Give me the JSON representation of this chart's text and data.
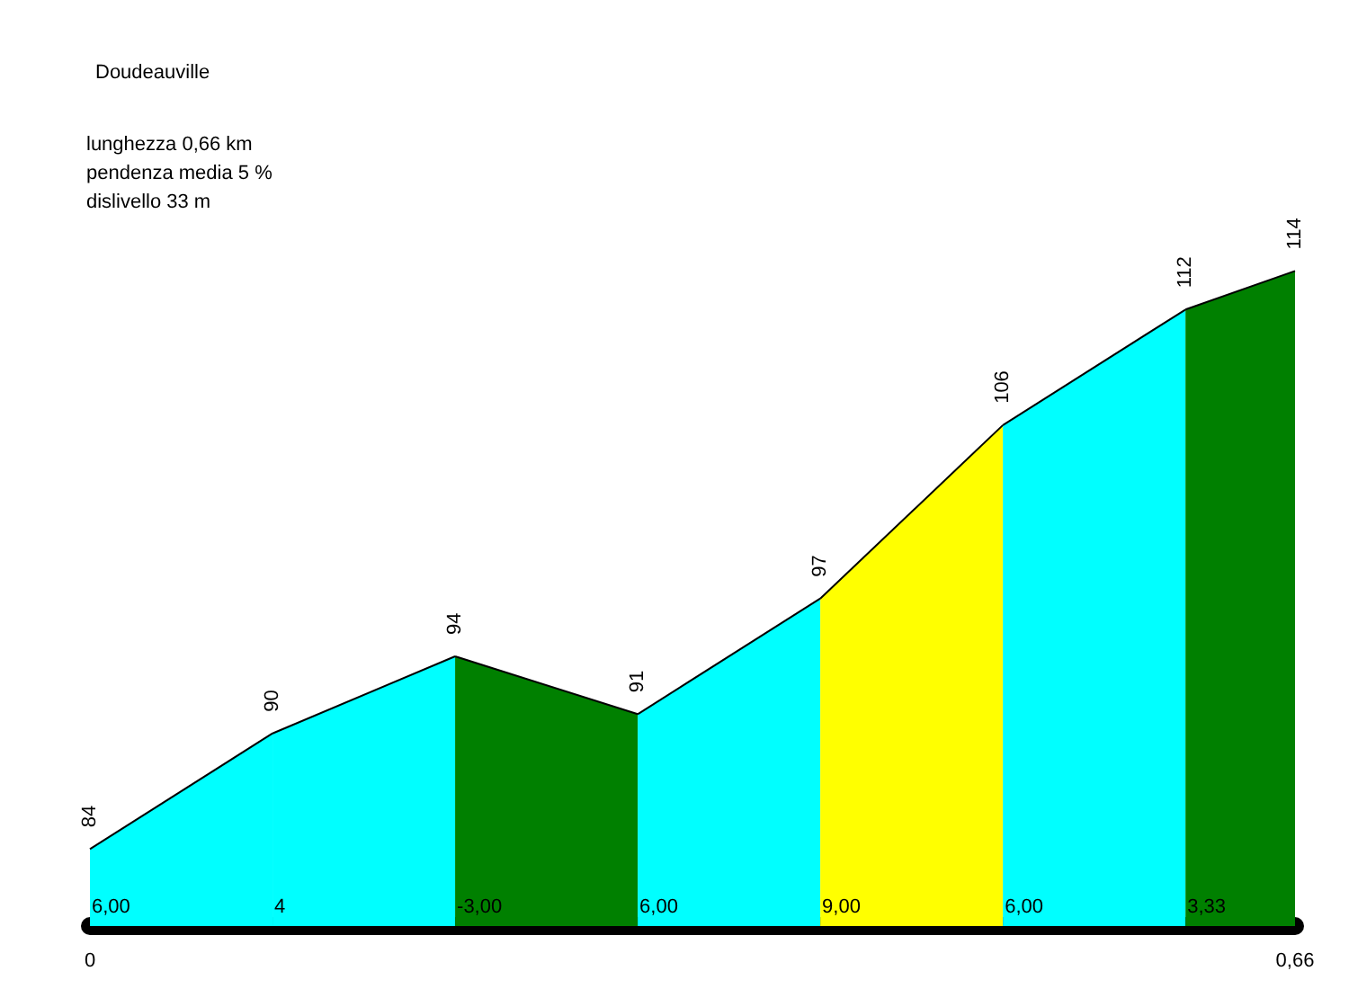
{
  "chart_data": {
    "type": "area",
    "title": "Doudeauville",
    "annotations": [
      "lunghezza 0,66 km",
      "pendenza media 5 %",
      "dislivello 33 m",
      {
        "text": "6,00",
        "x": 0
      },
      {
        "text": "4",
        "x": 0.1
      },
      {
        "text": "-3,00",
        "x": 0.2
      },
      {
        "text": "6,00",
        "x": 0.3
      },
      {
        "text": "9,00",
        "x": 0.4
      },
      {
        "text": "6,00",
        "x": 0.5
      },
      {
        "text": "3,33",
        "x": 0.6
      }
    ],
    "series": [
      {
        "color": "#00ffff",
        "x": [
          0,
          0.1
        ],
        "values": [
          84,
          90
        ],
        "value_labels": [
          "84",
          "90"
        ]
      },
      {
        "color": "#00ffff",
        "x": [
          0.1,
          0.2
        ],
        "values": [
          90,
          94
        ],
        "value_labels": [
          null,
          "94"
        ]
      },
      {
        "color": "#008000",
        "x": [
          0.2,
          0.3
        ],
        "values": [
          94,
          91
        ],
        "value_labels": [
          null,
          "91"
        ]
      },
      {
        "color": "#00ffff",
        "x": [
          0.3,
          0.4
        ],
        "values": [
          91,
          97
        ],
        "value_labels": [
          null,
          "97"
        ]
      },
      {
        "color": "#ffff00",
        "x": [
          0.4,
          0.5
        ],
        "values": [
          97,
          106
        ],
        "value_labels": [
          null,
          "106"
        ]
      },
      {
        "color": "#00ffff",
        "x": [
          0.5,
          0.6
        ],
        "values": [
          106,
          112
        ],
        "value_labels": [
          null,
          "112"
        ]
      },
      {
        "color": "#008000",
        "x": [
          0.6,
          0.66
        ],
        "values": [
          112,
          114
        ],
        "value_labels": [
          null,
          "114"
        ]
      }
    ],
    "xlim": [
      0,
      0.66
    ],
    "xticks": [
      0,
      {
        "value": 0.66,
        "label": "0,66"
      }
    ],
    "tick_labels": "x",
    "grid": false,
    "marker": "none"
  }
}
